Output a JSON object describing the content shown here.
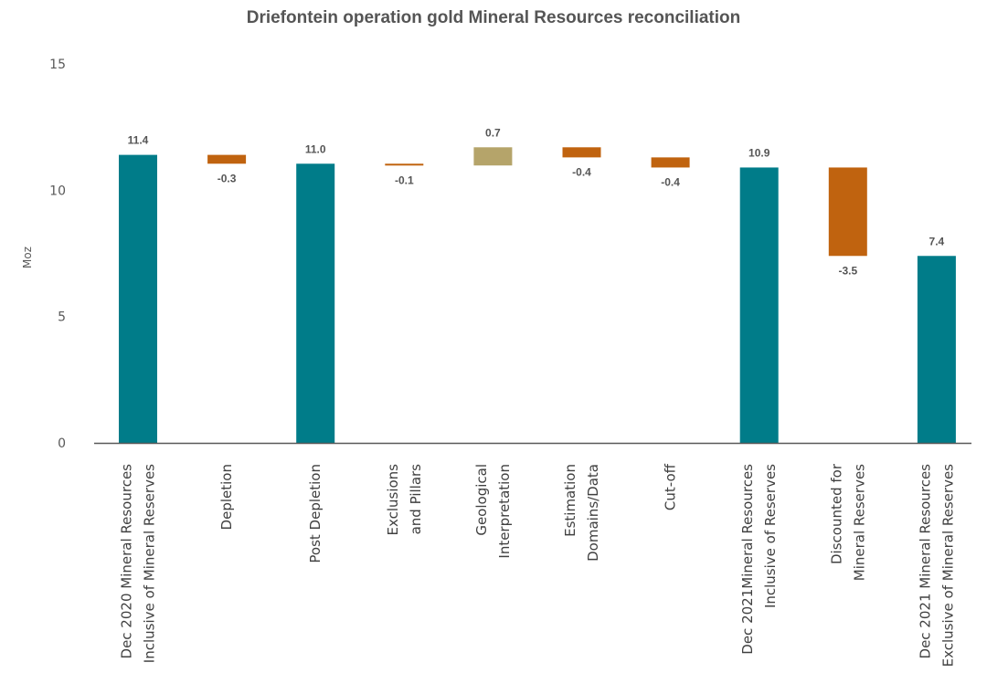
{
  "chart_data": {
    "type": "bar",
    "subtype": "waterfall",
    "title": "Driefontein operation gold Mineral Resources reconciliation",
    "ylabel": "Moz",
    "xlabel": "",
    "ylim": [
      0,
      15
    ],
    "yticks": [
      0,
      5,
      10,
      15
    ],
    "grid": false,
    "legend": "none",
    "colors": {
      "total": "#007C89",
      "decrease": "#C0630F",
      "increase": "#B5A46A",
      "axis": "#595959"
    },
    "categories": [
      [
        "Dec 2020 Mineral Resources",
        "Inclusive of Mineral Reserves"
      ],
      [
        "Depletion"
      ],
      [
        "Post Depletion"
      ],
      [
        "Exclusions",
        "and Pillars"
      ],
      [
        "Geological",
        "Interpretation"
      ],
      [
        "Estimation",
        "Domains/Data"
      ],
      [
        "Cut-off"
      ],
      [
        "Dec 2021Mineral Resources",
        "Inclusive of Reserves"
      ],
      [
        "Discounted for",
        "Mineral Reserves"
      ],
      [
        "Dec 2021 Mineral Resources",
        "Exclusive of Mineral Reserves"
      ]
    ],
    "bars": [
      {
        "kind": "total",
        "start": 0,
        "end": 11.4,
        "label": "11.4"
      },
      {
        "kind": "decrease",
        "start": 11.4,
        "end": 11.05,
        "label": "-0.3"
      },
      {
        "kind": "total",
        "start": 0,
        "end": 11.05,
        "label": "11.0"
      },
      {
        "kind": "decrease",
        "start": 11.05,
        "end": 10.98,
        "label": "-0.1"
      },
      {
        "kind": "increase",
        "start": 10.98,
        "end": 11.7,
        "label": "0.7"
      },
      {
        "kind": "decrease",
        "start": 11.7,
        "end": 11.3,
        "label": "-0.4"
      },
      {
        "kind": "decrease",
        "start": 11.3,
        "end": 10.9,
        "label": "-0.4"
      },
      {
        "kind": "total",
        "start": 0,
        "end": 10.9,
        "label": "10.9"
      },
      {
        "kind": "decrease",
        "start": 10.9,
        "end": 7.4,
        "label": "-3.5"
      },
      {
        "kind": "total",
        "start": 0,
        "end": 7.4,
        "label": "7.4"
      }
    ]
  }
}
